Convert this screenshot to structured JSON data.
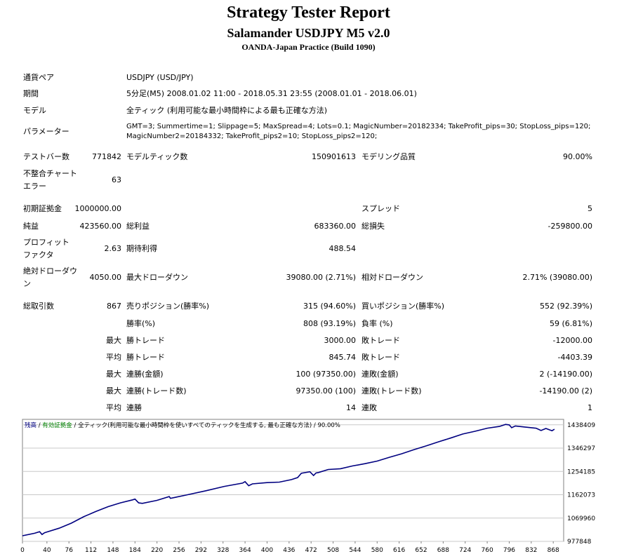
{
  "header": {
    "title": "Strategy Tester Report",
    "subtitle": "Salamander USDJPY M5 v2.0",
    "server": "OANDA-Japan Practice (Build 1090)"
  },
  "info": {
    "symbol_label": "通貨ペア",
    "symbol_value": "USDJPY (USD/JPY)",
    "period_label": "期間",
    "period_value": "5分足(M5) 2008.01.02 11:00 - 2018.05.31 23:55 (2008.01.01 - 2018.06.01)",
    "model_label": "モデル",
    "model_value": "全ティック (利用可能な最小時間枠による最も正確な方法)",
    "params_label": "パラメーター",
    "params_line1": "GMT=3; Summertime=1; Slippage=5; MaxSpread=4; Lots=0.1; MagicNumber=20182334; TakeProfit_pips=30; StopLoss_pips=120;",
    "params_line2": "MagicNumber2=20184332; TakeProfit_pips2=10; StopLoss_pips2=120;"
  },
  "stats": {
    "bars_label": "テストバー数",
    "bars_value": "771842",
    "ticks_label": "モデルティック数",
    "ticks_value": "150901613",
    "quality_label": "モデリング品質",
    "quality_value": "90.00%",
    "mismatch_label1": "不整合チャート",
    "mismatch_label2": "エラー",
    "mismatch_value": "63",
    "deposit_label": "初期証拠金",
    "deposit_value": "1000000.00",
    "spread_label": "スプレッド",
    "spread_value": "5",
    "net_label": "純益",
    "net_value": "423560.00",
    "gross_profit_label": "総利益",
    "gross_profit_value": "683360.00",
    "gross_loss_label": "総損失",
    "gross_loss_value": "-259800.00",
    "pf_label1": "プロフィット",
    "pf_label2": "ファクタ",
    "pf_value": "2.63",
    "payoff_label": "期待利得",
    "payoff_value": "488.54",
    "abs_dd_label1": "絶対ドローダウ",
    "abs_dd_label2": "ン",
    "abs_dd_value": "4050.00",
    "max_dd_label": "最大ドローダウン",
    "max_dd_value": "39080.00 (2.71%)",
    "rel_dd_label": "相対ドローダウン",
    "rel_dd_value": "2.71% (39080.00)",
    "total_trades_label": "総取引数",
    "total_trades_value": "867",
    "short_label": "売りポジション(勝率%)",
    "short_value": "315 (94.60%)",
    "long_label": "買いポジション(勝率%)",
    "long_value": "552 (92.39%)",
    "win_rate_label": "勝率(%)",
    "win_rate_value": "808 (93.19%)",
    "loss_rate_label": "負率 (%)",
    "loss_rate_value": "59 (6.81%)",
    "max_word": "最大",
    "avg_word": "平均",
    "win_trade_label": "勝トレード",
    "loss_trade_label": "敗トレード",
    "largest_win_value": "3000.00",
    "largest_loss_value": "-12000.00",
    "avg_win_value": "845.74",
    "avg_loss_value": "-4403.39",
    "cons_win_money_label": "連勝(金額)",
    "cons_win_money_value": "100 (97350.00)",
    "cons_loss_money_label": "連敗(金額)",
    "cons_loss_money_value": "2 (-14190.00)",
    "cons_win_trades_label": "連勝(トレード数)",
    "cons_win_trades_value": "97350.00 (100)",
    "cons_loss_trades_label": "連敗(トレード数)",
    "cons_loss_trades_value": "-14190.00 (2)",
    "avg_cons_win_label": "連勝",
    "avg_cons_win_value": "14",
    "avg_cons_loss_label": "連敗",
    "avg_cons_loss_value": "1"
  },
  "chart_legend": {
    "balance": "残高",
    "sep1": " / ",
    "equity": "有効証拠金",
    "sep2": " / ",
    "model": "全ティック(利用可能な最小時間枠を使いすべてのティックを生成する, 最も正確な方法)",
    "quality": " / 90.00%"
  },
  "colors": {
    "balance_line": "#000080",
    "equity_legend": "#008000",
    "grid": "#c8c8c8"
  },
  "chart_data": {
    "type": "line",
    "title": "",
    "xlabel": "",
    "ylabel": "",
    "x_ticks": [
      0,
      40,
      76,
      112,
      148,
      184,
      220,
      256,
      292,
      328,
      364,
      400,
      436,
      472,
      508,
      544,
      580,
      616,
      652,
      688,
      724,
      760,
      796,
      832,
      868
    ],
    "y_ticks": [
      977848,
      1069960,
      1162073,
      1254185,
      1346297,
      1438409
    ],
    "xlim": [
      0,
      885
    ],
    "ylim": [
      977848,
      1460000
    ],
    "series": [
      {
        "x": [
          0,
          20,
          28,
          32,
          36,
          40,
          60,
          80,
          100,
          120,
          140,
          160,
          180,
          184,
          190,
          196,
          220,
          240,
          242,
          250,
          270,
          300,
          330,
          360,
          364,
          370,
          376,
          400,
          420,
          440,
          450,
          456,
          470,
          476,
          480,
          484,
          500,
          520,
          540,
          560,
          580,
          600,
          620,
          640,
          660,
          680,
          700,
          720,
          740,
          760,
          780,
          790,
          796,
          800,
          806,
          820,
          840,
          848,
          856,
          866,
          870
        ],
        "y": [
          1000000,
          1010000,
          1016000,
          1005000,
          1012000,
          1015000,
          1030000,
          1050000,
          1075000,
          1096000,
          1115000,
          1130000,
          1142000,
          1145000,
          1130000,
          1128000,
          1140000,
          1155000,
          1148000,
          1152000,
          1162000,
          1178000,
          1195000,
          1208000,
          1214000,
          1198000,
          1205000,
          1210000,
          1212000,
          1222000,
          1230000,
          1247000,
          1253000,
          1238000,
          1248000,
          1250000,
          1262000,
          1265000,
          1276000,
          1285000,
          1295000,
          1310000,
          1324000,
          1340000,
          1355000,
          1371000,
          1386000,
          1402000,
          1413000,
          1425000,
          1432000,
          1440000,
          1438000,
          1427000,
          1434000,
          1430000,
          1425000,
          1416000,
          1424000,
          1415000,
          1421000
        ]
      }
    ]
  }
}
